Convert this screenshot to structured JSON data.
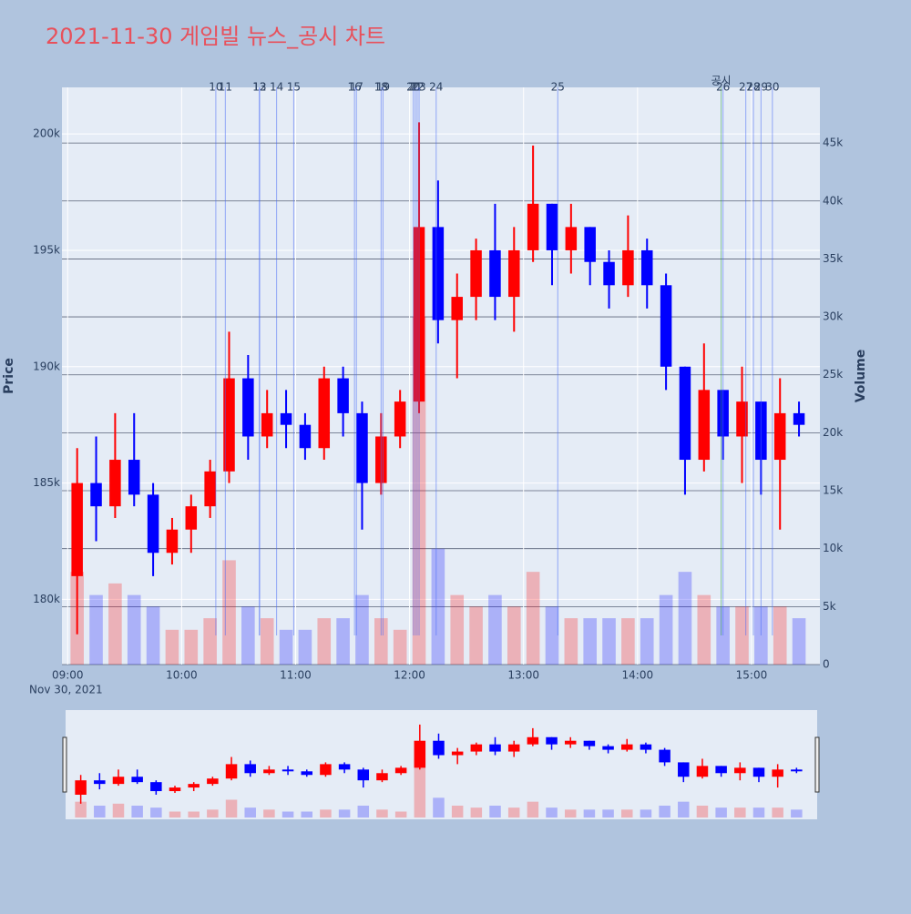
{
  "chart_data": {
    "type": "candlestick",
    "title": "2021-11-30 게임빌 뉴스_공시 차트",
    "y_label": "Price",
    "y2_label": "Volume",
    "x_date_label": "Nov 30, 2021",
    "increasing_color": "#ff0000",
    "decreasing_color": "#0000ff",
    "grid": true,
    "range_slider": true,
    "xlim": [
      "08:57",
      "15:36"
    ],
    "xticks": [
      "09:00",
      "10:00",
      "11:00",
      "12:00",
      "13:00",
      "14:00",
      "15:00"
    ],
    "ylim": [
      177200,
      202000
    ],
    "yticks": [
      {
        "value": 180000,
        "label": "180k"
      },
      {
        "value": 185000,
        "label": "185k"
      },
      {
        "value": 190000,
        "label": "190k"
      },
      {
        "value": 195000,
        "label": "195k"
      },
      {
        "value": 200000,
        "label": "200k"
      }
    ],
    "y2lim": [
      0,
      49800
    ],
    "y2ticks": [
      0,
      {
        "value": 5000,
        "label": "5k"
      },
      {
        "value": 10000,
        "label": "10k"
      },
      {
        "value": 15000,
        "label": "15k"
      },
      {
        "value": 20000,
        "label": "20k"
      },
      {
        "value": 25000,
        "label": "25k"
      },
      {
        "value": 30000,
        "label": "30k"
      },
      {
        "value": 35000,
        "label": "35k"
      },
      {
        "value": 40000,
        "label": "40k"
      },
      {
        "value": 45000,
        "label": "45k"
      }
    ],
    "x": [
      "09:00",
      "09:10",
      "09:20",
      "09:30",
      "09:40",
      "09:50",
      "10:00",
      "10:10",
      "10:20",
      "10:30",
      "10:40",
      "10:50",
      "11:00",
      "11:10",
      "11:20",
      "11:30",
      "11:40",
      "11:50",
      "12:00",
      "12:10",
      "12:20",
      "12:30",
      "12:40",
      "12:50",
      "13:00",
      "13:10",
      "13:20",
      "13:30",
      "13:40",
      "13:50",
      "14:00",
      "14:10",
      "14:20",
      "14:30",
      "14:40",
      "14:50",
      "15:00",
      "15:10",
      "15:20"
    ],
    "open": [
      181000,
      185000,
      184000,
      186000,
      184500,
      182000,
      183000,
      184000,
      185500,
      189500,
      187000,
      188000,
      187500,
      186500,
      189500,
      188000,
      185000,
      187000,
      188500,
      196000,
      192000,
      193000,
      195000,
      193000,
      195000,
      197000,
      195000,
      196000,
      194500,
      193500,
      195000,
      193500,
      190000,
      186000,
      189000,
      187000,
      188500,
      186000,
      188000
    ],
    "high": [
      186500,
      187000,
      188000,
      188000,
      185000,
      183500,
      184500,
      186000,
      191500,
      190500,
      189000,
      189000,
      188000,
      190000,
      190000,
      188500,
      188000,
      189000,
      200500,
      198000,
      194000,
      195500,
      197000,
      196000,
      199500,
      197000,
      197000,
      196000,
      195000,
      196500,
      195500,
      194000,
      190000,
      191000,
      189000,
      190000,
      188500,
      189500,
      188500
    ],
    "low": [
      178500,
      182500,
      183500,
      184000,
      181000,
      181500,
      182000,
      183500,
      185000,
      186000,
      186500,
      186500,
      186000,
      186000,
      187000,
      183000,
      184500,
      186500,
      188000,
      191000,
      189500,
      192000,
      192000,
      191500,
      194500,
      193500,
      194000,
      193500,
      192500,
      193000,
      192500,
      189000,
      184500,
      185500,
      186000,
      185000,
      184500,
      183000,
      187000
    ],
    "close": [
      185000,
      184000,
      186000,
      184500,
      182000,
      183000,
      184000,
      185500,
      189500,
      187000,
      188000,
      187500,
      186500,
      189500,
      188000,
      185000,
      187000,
      188500,
      196000,
      192000,
      193000,
      195000,
      193000,
      195000,
      197000,
      195000,
      196000,
      194500,
      193500,
      195000,
      193500,
      190000,
      186000,
      189000,
      187000,
      188500,
      186000,
      188000,
      187500
    ],
    "volume": [
      8000,
      6000,
      7000,
      6000,
      5000,
      3000,
      3000,
      4000,
      9000,
      5000,
      4000,
      3000,
      3000,
      4000,
      4000,
      6000,
      4000,
      3000,
      30000,
      10000,
      6000,
      5000,
      6000,
      5000,
      8000,
      5000,
      4000,
      4000,
      4000,
      4000,
      4000,
      6000,
      8000,
      6000,
      5000,
      5000,
      5000,
      5000,
      4000
    ],
    "news": [
      {
        "time": "10:18",
        "label": "10",
        "color": "#4a6cf7"
      },
      {
        "time": "10:23",
        "label": "11",
        "color": "#4a6cf7"
      },
      {
        "time": "10:41",
        "label": "12",
        "color": "#4a6cf7"
      },
      {
        "time": "10:41",
        "label": "13",
        "color": "#4a6cf7"
      },
      {
        "time": "10:50",
        "label": "14",
        "color": "#4a6cf7"
      },
      {
        "time": "10:59",
        "label": "15",
        "color": "#4a6cf7"
      },
      {
        "time": "11:31",
        "label": "16",
        "color": "#4a6cf7"
      },
      {
        "time": "11:32",
        "label": "17",
        "color": "#4a6cf7"
      },
      {
        "time": "11:45",
        "label": "18",
        "color": "#4a6cf7"
      },
      {
        "time": "11:46",
        "label": "19",
        "color": "#4a6cf7"
      },
      {
        "time": "12:02",
        "label": "20",
        "color": "#4a6cf7"
      },
      {
        "time": "12:03",
        "label": "21",
        "color": "#4a6cf7"
      },
      {
        "time": "12:04",
        "label": "22",
        "color": "#4a6cf7"
      },
      {
        "time": "12:05",
        "label": "23",
        "color": "#4a6cf7"
      },
      {
        "time": "12:14",
        "label": "24",
        "color": "#4a6cf7"
      },
      {
        "time": "13:18",
        "label": "25",
        "color": "#4a6cf7"
      },
      {
        "time": "14:44",
        "label": "공시",
        "color": "#2e9e4f"
      },
      {
        "time": "14:45",
        "label": "26",
        "color": "#4a6cf7"
      },
      {
        "time": "14:57",
        "label": "27",
        "color": "#4a6cf7"
      },
      {
        "time": "15:01",
        "label": "28",
        "color": "#4a6cf7"
      },
      {
        "time": "15:05",
        "label": "29",
        "color": "#4a6cf7"
      },
      {
        "time": "15:11",
        "label": "30",
        "color": "#4a6cf7"
      }
    ]
  }
}
